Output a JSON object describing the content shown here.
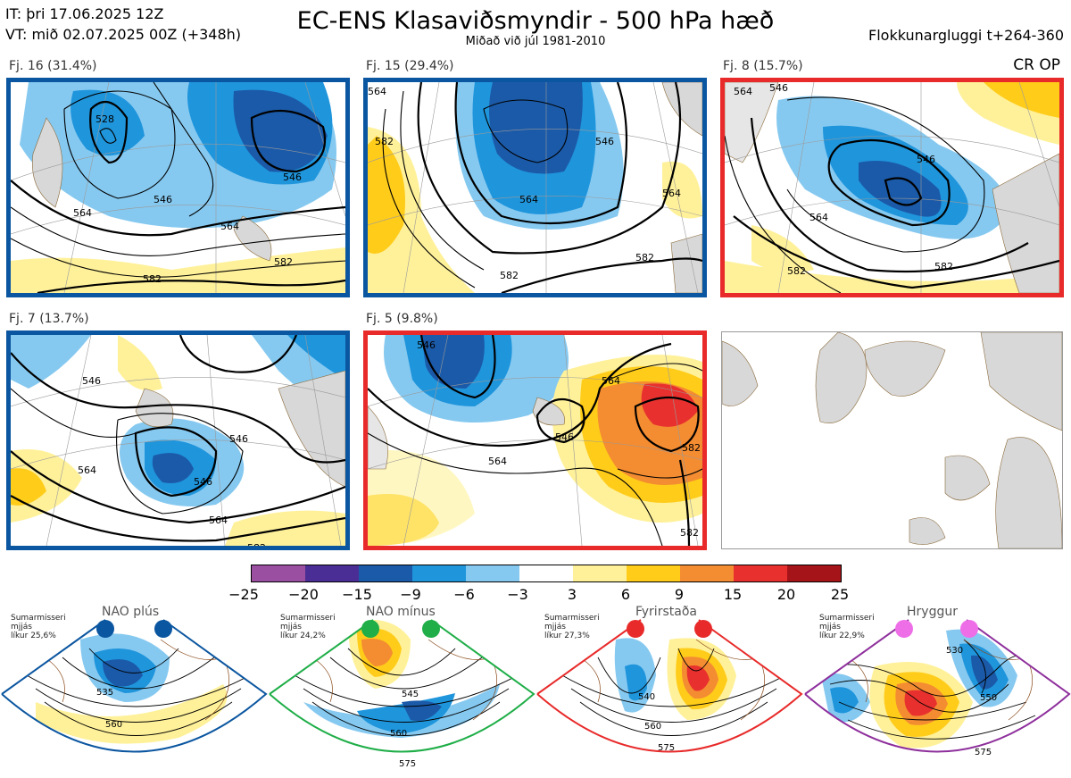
{
  "header": {
    "it_line": "IT: þri 17.06.2025 12Z",
    "vt_line": "VT: mið 02.07.2025 00Z  (+348h)",
    "title": "EC-ENS Klasaviðsmyndir - 500 hPa hæð",
    "subtitle": "Miðað við júl 1981-2010",
    "window": "Flokkunargluggi t+264-360",
    "cr_op": "CR OP"
  },
  "clusters": [
    {
      "label": "Fj. 16 (31.4%)",
      "frame": "#0b56a0",
      "contours": [
        "564",
        "582",
        "546",
        "528",
        "546",
        "564",
        "582"
      ]
    },
    {
      "label": "Fj. 15 (29.4%)",
      "frame": "#0b56a0",
      "contours": [
        "546",
        "564",
        "582",
        "582",
        "564",
        "582",
        "564"
      ]
    },
    {
      "label": "Fj. 8 (15.7%)",
      "frame": "#e82a2a",
      "contours": [
        "564",
        "546",
        "546",
        "564",
        "582",
        "582"
      ]
    },
    {
      "label": "Fj. 7 (13.7%)",
      "frame": "#0b56a0",
      "contours": [
        "546",
        "564",
        "546",
        "546",
        "564",
        "582"
      ]
    },
    {
      "label": "Fj. 5 (9.8%)",
      "frame": "#e82a2a",
      "contours": [
        "546",
        "564",
        "564",
        "546",
        "582",
        "582"
      ]
    }
  ],
  "colorbar": {
    "colors": [
      "#9a4fa0",
      "#4a2e95",
      "#1b5aa8",
      "#1f95dc",
      "#86c9f0",
      "#ffffff",
      "#fff19a",
      "#ffcc1a",
      "#f48c31",
      "#e8312e",
      "#a51419"
    ],
    "ticks": [
      "−25",
      "−20",
      "−15",
      "−9",
      "−6",
      "−3",
      "3",
      "6",
      "9",
      "15",
      "20",
      "25"
    ]
  },
  "regimes": [
    {
      "name": "NAO plús",
      "note": [
        "Sumarmisseri",
        "mjjás",
        "líkur 25,6%"
      ],
      "dot_color": "#0b56a0",
      "frame": "#0b56a0",
      "contours": [
        "535",
        "560"
      ]
    },
    {
      "name": "NAO mínus",
      "note": [
        "Sumarmisseri",
        "mjjás",
        "líkur 24,2%"
      ],
      "dot_color": "#1fae48",
      "frame": "#1fae48",
      "contours": [
        "545",
        "560",
        "575"
      ]
    },
    {
      "name": "Fyrirstaða",
      "note": [
        "Sumarmisseri",
        "mjjás",
        "líkur 27,3%"
      ],
      "dot_color": "#e82a2a",
      "frame": "#e82a2a",
      "contours": [
        "540",
        "560",
        "575"
      ]
    },
    {
      "name": "Hryggur",
      "note": [
        "Sumarmisseri",
        "mjjás",
        "líkur 22,9%"
      ],
      "dot_color": "#ee6ee8",
      "frame": "#8e2f9c",
      "contours": [
        "530",
        "550",
        "575"
      ]
    }
  ]
}
